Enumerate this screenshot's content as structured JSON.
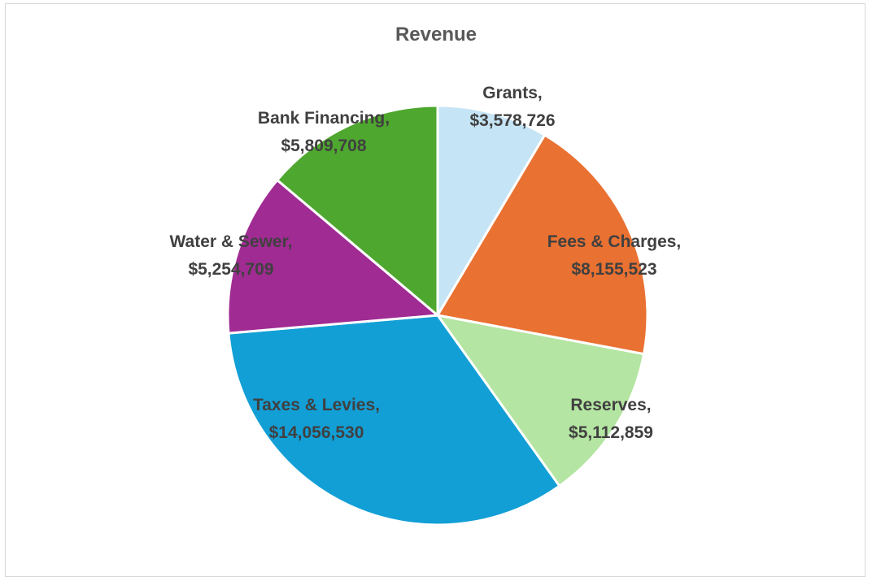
{
  "chart_data": {
    "type": "pie",
    "title": "Revenue",
    "slices": [
      {
        "label": "Grants",
        "value": 3578726,
        "display": "$3,578,726",
        "color": "#c5e4f5"
      },
      {
        "label": "Fees & Charges",
        "value": 8155523,
        "display": "$8,155,523",
        "color": "#e97132"
      },
      {
        "label": "Reserves",
        "value": 5112859,
        "display": "$5,112,859",
        "color": "#b4e5a2"
      },
      {
        "label": "Taxes & Levies",
        "value": 14056530,
        "display": "$14,056,530",
        "color": "#129fd6"
      },
      {
        "label": "Water & Sewer",
        "value": 5254709,
        "display": "$5,254,709",
        "color": "#a02b93"
      },
      {
        "label": "Bank Financing",
        "value": 5809708,
        "display": "$5,809,708",
        "color": "#4ea72e"
      }
    ],
    "legend": "none",
    "data_labels": "category-and-value"
  }
}
